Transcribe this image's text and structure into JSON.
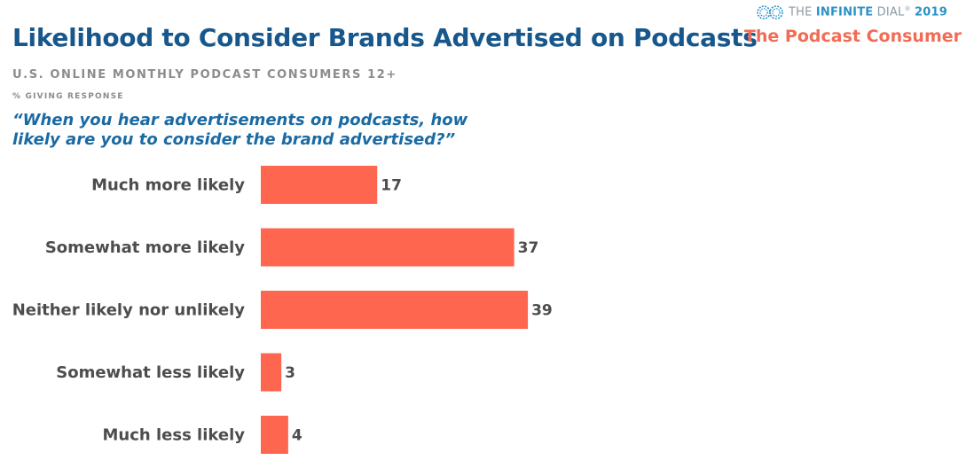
{
  "header": {
    "title": "Likelihood to Consider Brands Advertised on Podcasts",
    "subtitle": "U.S. ONLINE MONTHLY PODCAST CONSUMERS 12+",
    "response_note": "% GIVING RESPONSE",
    "question": "“When you hear advertisements on podcasts, how likely are you to consider the brand advertised?”"
  },
  "brand": {
    "logo_icon": "infinity-rings-icon",
    "name_prefix": "THE ",
    "name_strong": "INFINITE",
    "name_suffix": " DIAL",
    "mark": "®",
    "year": "2019",
    "section": "The Podcast Consumer",
    "colors": {
      "logo": "#2a92c8",
      "section": "#f26b55"
    }
  },
  "colors": {
    "bar": "#ff6650",
    "title": "#17578c",
    "question": "#1a6aa3",
    "label": "#4d4d4d"
  },
  "chart_data": {
    "type": "bar",
    "orientation": "horizontal",
    "categories": [
      "Much more likely",
      "Somewhat more likely",
      "Neither likely nor unlikely",
      "Somewhat less likely",
      "Much less likely"
    ],
    "values": [
      17,
      37,
      39,
      3,
      4
    ],
    "data_labels": [
      "17",
      "37",
      "39",
      "3",
      "4"
    ],
    "xlabel": "",
    "ylabel": "",
    "xlim": [
      0,
      100
    ],
    "grid": false,
    "legend": "none"
  }
}
